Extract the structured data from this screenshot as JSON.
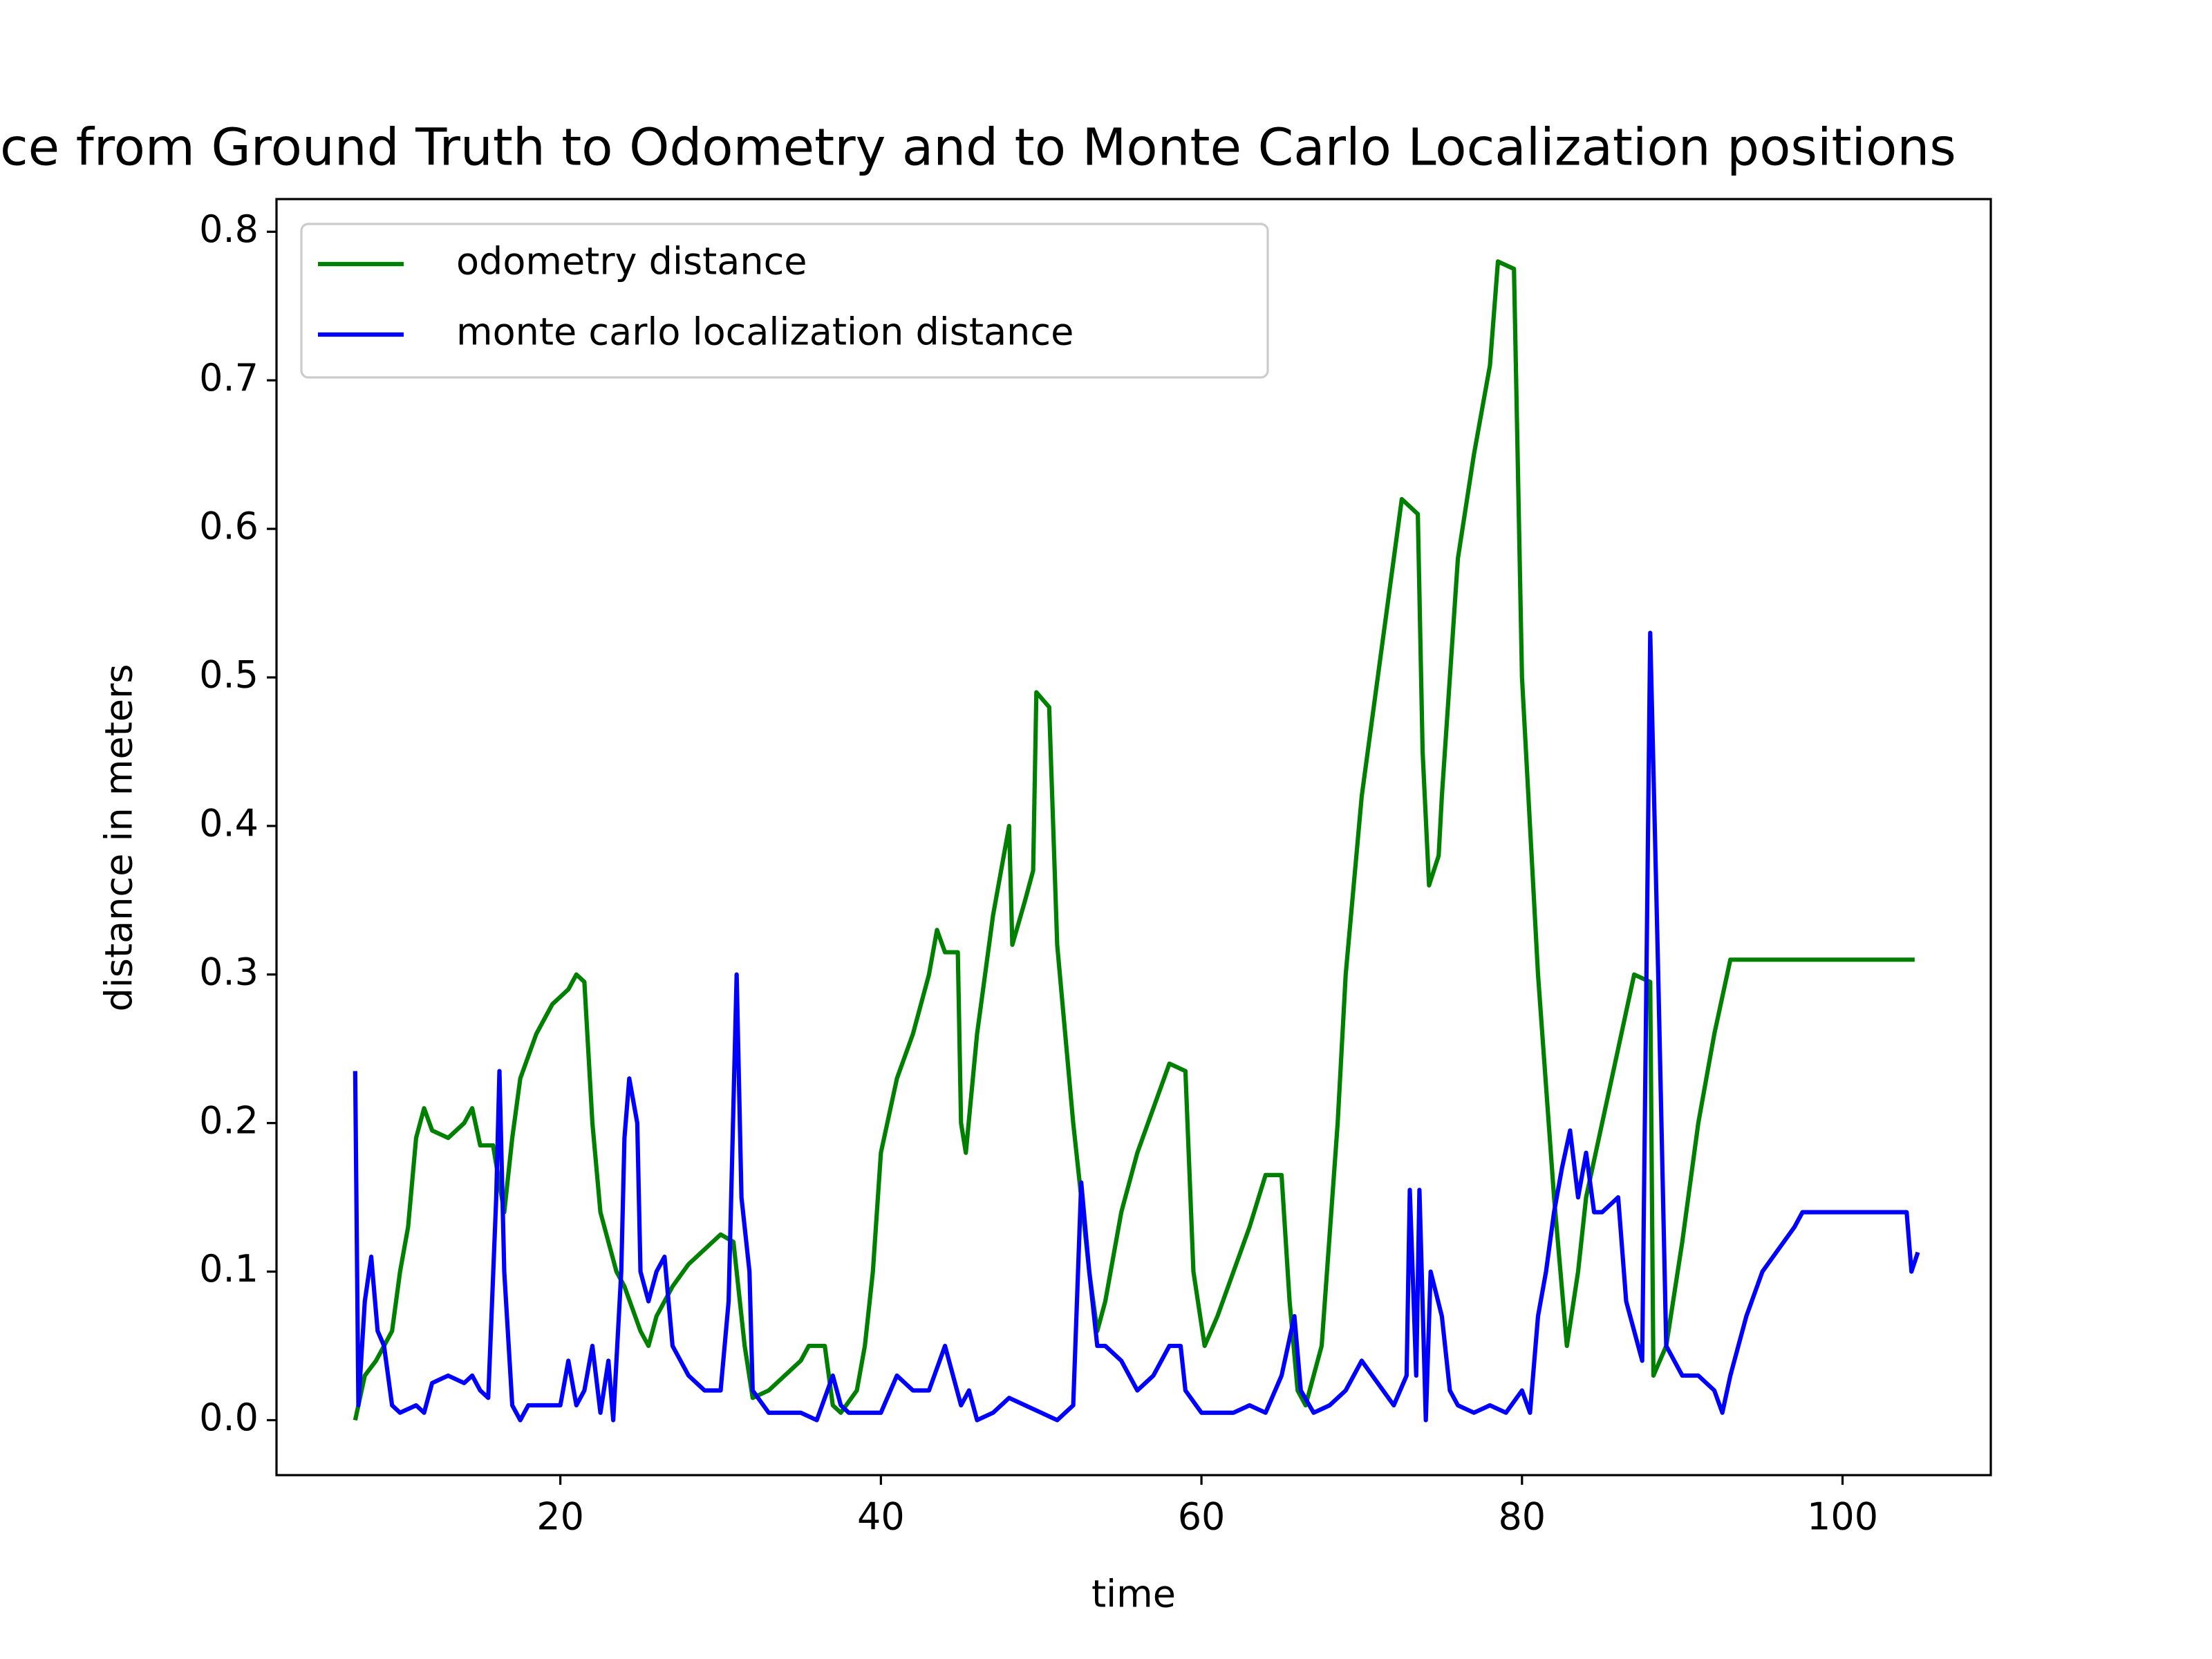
{
  "chart_data": {
    "type": "line",
    "title": "ce from Ground Truth to Odometry and to Monte Carlo Localization positions",
    "xlabel": "time",
    "ylabel": "distance in meters",
    "xlim": [
      2.29,
      109.25
    ],
    "ylim": [
      -0.037,
      0.822
    ],
    "xticks": [
      20,
      40,
      60,
      80,
      100
    ],
    "yticks": [
      {
        "value": 0,
        "label": "0.0"
      },
      0.1,
      0.2,
      0.3,
      0.4,
      0.5,
      0.6,
      0.7,
      0.8
    ],
    "legend": "upper left",
    "grid": false,
    "series": [
      {
        "name": "odometry distance",
        "color": "#008000",
        "x": [
          7.2,
          7.8,
          8.5,
          9.5,
          10,
          10.5,
          11,
          11.5,
          12,
          13,
          14,
          14.5,
          15,
          15.8,
          16.5,
          17,
          17.5,
          18.5,
          19.5,
          20.5,
          21,
          21.5,
          22,
          22.5,
          23,
          23.5,
          24,
          25,
          25.5,
          26,
          27,
          28,
          29,
          30,
          30.8,
          31.5,
          32,
          33,
          34,
          35,
          35.5,
          36.5,
          37,
          37.5,
          38.5,
          39,
          39.5,
          40,
          41,
          42,
          43,
          43.5,
          44,
          44.8,
          45,
          45.3,
          46,
          47,
          48,
          48.2,
          49,
          49.5,
          49.7,
          50.5,
          51,
          52,
          53,
          53.5,
          54,
          55,
          56,
          57,
          58,
          59,
          59.5,
          60.2,
          61,
          62,
          63,
          64,
          65,
          65.5,
          66,
          66.5,
          67.5,
          68.5,
          69,
          70,
          71,
          72,
          72.5,
          73.5,
          73.8,
          74.2,
          74.8,
          75,
          76,
          77,
          78,
          78.5,
          79.5,
          80,
          81,
          82,
          82.8,
          83.5,
          84,
          85,
          86,
          87,
          88,
          88.2,
          89,
          90,
          91,
          92,
          93,
          104.5
        ],
        "values": [
          0,
          0.03,
          0.04,
          0.06,
          0.1,
          0.13,
          0.19,
          0.21,
          0.195,
          0.19,
          0.2,
          0.21,
          0.185,
          0.185,
          0.14,
          0.19,
          0.23,
          0.26,
          0.28,
          0.29,
          0.3,
          0.295,
          0.2,
          0.14,
          0.12,
          0.1,
          0.09,
          0.06,
          0.05,
          0.07,
          0.09,
          0.105,
          0.115,
          0.125,
          0.12,
          0.05,
          0.015,
          0.02,
          0.03,
          0.04,
          0.05,
          0.05,
          0.01,
          0.005,
          0.02,
          0.05,
          0.1,
          0.18,
          0.23,
          0.26,
          0.3,
          0.33,
          0.315,
          0.315,
          0.2,
          0.18,
          0.26,
          0.34,
          0.4,
          0.32,
          0.35,
          0.37,
          0.49,
          0.48,
          0.32,
          0.2,
          0.1,
          0.06,
          0.08,
          0.14,
          0.18,
          0.21,
          0.24,
          0.235,
          0.1,
          0.05,
          0.07,
          0.1,
          0.13,
          0.165,
          0.165,
          0.08,
          0.02,
          0.01,
          0.05,
          0.2,
          0.3,
          0.42,
          0.5,
          0.58,
          0.62,
          0.61,
          0.45,
          0.36,
          0.38,
          0.42,
          0.58,
          0.65,
          0.71,
          0.78,
          0.775,
          0.5,
          0.3,
          0.15,
          0.05,
          0.1,
          0.15,
          0.2,
          0.25,
          0.3,
          0.295,
          0.03,
          0.05,
          0.12,
          0.2,
          0.26,
          0.31,
          0.31
        ]
      },
      {
        "name": "monte carlo localization distance",
        "color": "#0000ff",
        "x": [
          7.2,
          7.4,
          7.8,
          8.2,
          8.6,
          9,
          9.5,
          10,
          11,
          11.5,
          12,
          13,
          14,
          14.5,
          15,
          15.5,
          16,
          16.2,
          16.5,
          17,
          17.5,
          18,
          19,
          20,
          20.5,
          21,
          21.5,
          22,
          22.5,
          23,
          23.3,
          23.8,
          24,
          24.3,
          24.8,
          25,
          25.5,
          26,
          26.5,
          27,
          28,
          29,
          30,
          30.5,
          31,
          31.3,
          31.8,
          32,
          33,
          35,
          36,
          37,
          37.5,
          38,
          39,
          40,
          41,
          42,
          43,
          44,
          45,
          45.5,
          46,
          47,
          48,
          49,
          50,
          51,
          52,
          52.5,
          53,
          53.5,
          54,
          55,
          56,
          57,
          58,
          58.7,
          59,
          60,
          62,
          63,
          64,
          65,
          65.8,
          66.2,
          67,
          68,
          69,
          70,
          71,
          72,
          72.8,
          73,
          73.4,
          73.6,
          74,
          74.3,
          75,
          75.5,
          76,
          77,
          78,
          79,
          80,
          80.5,
          81,
          81.5,
          82,
          82.5,
          83,
          83.5,
          84,
          84.5,
          85,
          86,
          86.5,
          87,
          87.5,
          88,
          88.5,
          89,
          90,
          91,
          92,
          92.5,
          93,
          94,
          95,
          96,
          97,
          97.5,
          104,
          104.3,
          104.7
        ],
        "values": [
          0.235,
          0.01,
          0.08,
          0.11,
          0.06,
          0.05,
          0.01,
          0.005,
          0.01,
          0.005,
          0.025,
          0.03,
          0.025,
          0.03,
          0.02,
          0.015,
          0.15,
          0.235,
          0.1,
          0.01,
          0,
          0.01,
          0.01,
          0.01,
          0.04,
          0.01,
          0.02,
          0.05,
          0.005,
          0.04,
          0,
          0.1,
          0.19,
          0.23,
          0.2,
          0.1,
          0.08,
          0.1,
          0.11,
          0.05,
          0.03,
          0.02,
          0.02,
          0.08,
          0.3,
          0.15,
          0.1,
          0.02,
          0.005,
          0.005,
          0,
          0.03,
          0.01,
          0.005,
          0.005,
          0.005,
          0.03,
          0.02,
          0.02,
          0.05,
          0.01,
          0.02,
          0,
          0.005,
          0.015,
          0.01,
          0.005,
          0,
          0.01,
          0.16,
          0.1,
          0.05,
          0.05,
          0.04,
          0.02,
          0.03,
          0.05,
          0.05,
          0.02,
          0.005,
          0.005,
          0.01,
          0.005,
          0.03,
          0.07,
          0.02,
          0.005,
          0.01,
          0.02,
          0.04,
          0.025,
          0.01,
          0.03,
          0.155,
          0.03,
          0.155,
          0,
          0.1,
          0.07,
          0.02,
          0.01,
          0.005,
          0.01,
          0.005,
          0.02,
          0.005,
          0.07,
          0.1,
          0.14,
          0.17,
          0.195,
          0.15,
          0.18,
          0.14,
          0.14,
          0.15,
          0.08,
          0.06,
          0.04,
          0.53,
          0.3,
          0.05,
          0.03,
          0.03,
          0.02,
          0.005,
          0.03,
          0.07,
          0.1,
          0.115,
          0.13,
          0.14,
          0.14,
          0.1,
          0.113
        ]
      }
    ]
  }
}
